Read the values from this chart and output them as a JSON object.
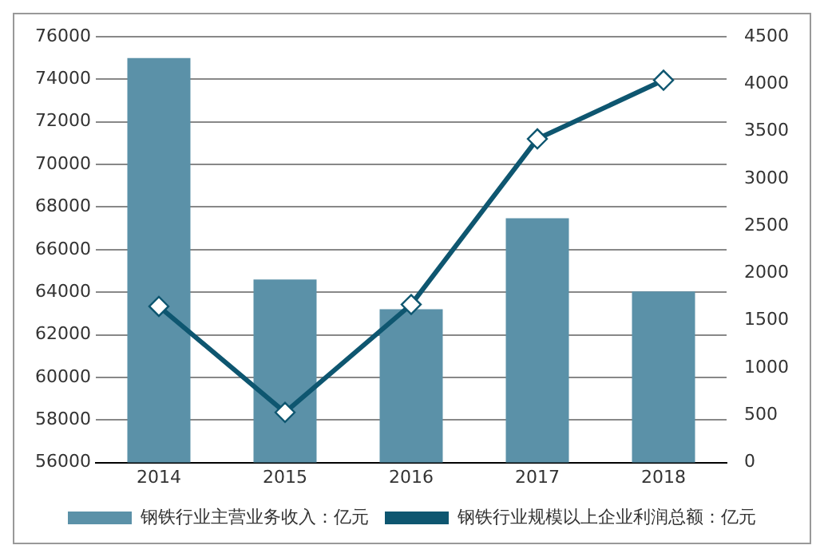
{
  "chart_data": {
    "type": "bar",
    "categories": [
      "2014",
      "2015",
      "2016",
      "2017",
      "2018"
    ],
    "series": [
      {
        "name": "钢铁行业主营业务收入：亿元",
        "color": "#5b91a8",
        "values": [
          75000,
          64600,
          63200,
          67470,
          64030
        ]
      },
      {
        "name": "钢铁行业规模以上企业利润总额：亿元",
        "type": "line",
        "axis": "y2",
        "color": "#0e5670",
        "marker": "diamond",
        "values": [
          1650,
          530,
          1670,
          3420,
          4040
        ]
      }
    ],
    "ylim": [
      56000,
      76000
    ],
    "yticks": [
      56000,
      58000,
      60000,
      62000,
      64000,
      66000,
      68000,
      70000,
      72000,
      74000,
      76000
    ],
    "y2lim": [
      0,
      4500
    ],
    "y2ticks": [
      0,
      500,
      1000,
      1500,
      2000,
      2500,
      3000,
      3500,
      4000,
      4500
    ],
    "grid": "y",
    "legend": "bottom"
  }
}
